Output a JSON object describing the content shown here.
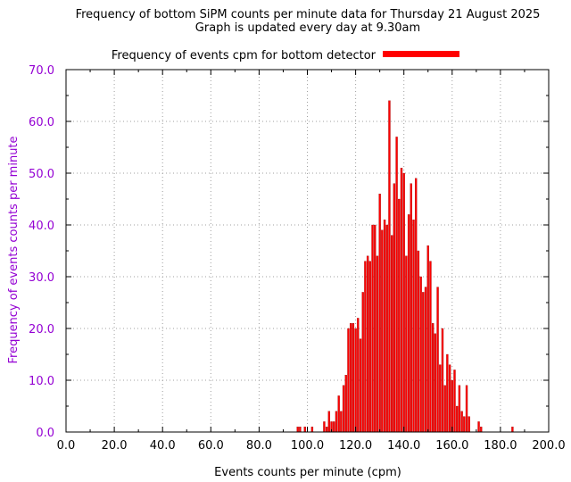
{
  "chart_data": {
    "type": "bar",
    "title": "Frequency of bottom SiPM counts per minute data for Thursday 21 August 2025",
    "subtitle": "Graph is updated every day at 9.30am",
    "xlabel": "Events counts per minute (cpm)",
    "ylabel": "Frequency of events counts per minute",
    "xlim": [
      0,
      200
    ],
    "ylim": [
      0,
      70
    ],
    "x_ticks": [
      "0.0",
      "20.0",
      "40.0",
      "60.0",
      "80.0",
      "100.0",
      "120.0",
      "140.0",
      "160.0",
      "180.0",
      "200.0"
    ],
    "y_ticks": [
      "0.0",
      "10.0",
      "20.0",
      "30.0",
      "40.0",
      "50.0",
      "60.0",
      "70.0"
    ],
    "grid": true,
    "legend_position": "top-center",
    "series": [
      {
        "name": "Frequency of events cpm for bottom detector",
        "color": "#ff0000",
        "x": [
          96,
          97,
          99,
          102,
          107,
          108,
          109,
          110,
          111,
          112,
          113,
          114,
          115,
          116,
          117,
          118,
          119,
          120,
          121,
          122,
          123,
          124,
          125,
          126,
          127,
          128,
          129,
          130,
          131,
          132,
          133,
          134,
          135,
          136,
          137,
          138,
          139,
          140,
          141,
          142,
          143,
          144,
          145,
          146,
          147,
          148,
          149,
          150,
          151,
          152,
          153,
          154,
          155,
          156,
          157,
          158,
          159,
          160,
          161,
          162,
          163,
          164,
          165,
          166,
          167,
          171,
          172,
          185
        ],
        "values": [
          1,
          1,
          1,
          1,
          2,
          1,
          4,
          2,
          2,
          4,
          7,
          4,
          9,
          11,
          20,
          21,
          21,
          20,
          22,
          18,
          27,
          33,
          34,
          33,
          40,
          40,
          34,
          46,
          39,
          41,
          40,
          64,
          38,
          48,
          57,
          45,
          51,
          50,
          34,
          42,
          48,
          41,
          49,
          35,
          30,
          27,
          28,
          36,
          33,
          21,
          19,
          28,
          13,
          20,
          9,
          15,
          13,
          10,
          12,
          5,
          9,
          4,
          3,
          9,
          3,
          2,
          1,
          1
        ]
      }
    ]
  },
  "colors": {
    "bar": "#ff0000",
    "bar_edge": "#8b0000",
    "y_axis_text": "#9400d3",
    "grid": "#a0a0a0"
  }
}
